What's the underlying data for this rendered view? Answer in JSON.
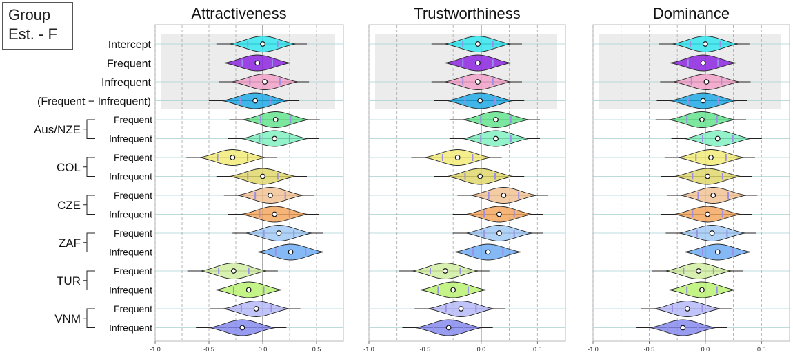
{
  "group_box": {
    "line1": "Group",
    "line2": "Est. - F"
  },
  "chart_data": {
    "type": "violin",
    "xlim": [
      -1.0,
      0.75
    ],
    "xticks": [
      "-1.0",
      "-0.5",
      "0.0",
      "0.5"
    ],
    "panels": [
      {
        "title": "Attractiveness",
        "means": [
          0.0,
          -0.05,
          0.02,
          -0.07,
          0.12,
          0.11,
          -0.28,
          0.0,
          0.07,
          0.11,
          0.15,
          0.26,
          -0.27,
          -0.13,
          -0.06,
          -0.19
        ]
      },
      {
        "title": "Trustworthiness",
        "means": [
          -0.03,
          -0.03,
          -0.03,
          -0.01,
          0.13,
          0.13,
          -0.21,
          -0.01,
          0.2,
          0.16,
          0.16,
          0.06,
          -0.32,
          -0.25,
          -0.18,
          -0.29
        ]
      },
      {
        "title": "Dominance",
        "means": [
          0.0,
          -0.02,
          0.01,
          -0.02,
          -0.03,
          0.11,
          0.05,
          0.02,
          0.07,
          0.02,
          0.06,
          0.11,
          -0.06,
          -0.03,
          -0.16,
          -0.2
        ]
      }
    ],
    "rows": [
      {
        "label": "Intercept",
        "color": "#2ee6f0"
      },
      {
        "label": "Frequent",
        "color": "#8a1fe0"
      },
      {
        "label": "Infrequent",
        "color": "#f3a0c8"
      },
      {
        "label": "(Frequent − Infrequent)",
        "color": "#1aa8e6"
      },
      {
        "group": "Aus/NZE",
        "label": "Frequent",
        "color": "#5fe28a"
      },
      {
        "label": "Infrequent",
        "color": "#7ef0c0"
      },
      {
        "group": "COL",
        "label": "Frequent",
        "color": "#f2ea74"
      },
      {
        "label": "Infrequent",
        "color": "#ded566"
      },
      {
        "group": "CZE",
        "label": "Frequent",
        "color": "#f0c090"
      },
      {
        "label": "Infrequent",
        "color": "#f3a35a"
      },
      {
        "group": "ZAF",
        "label": "Frequent",
        "color": "#9ec8f4"
      },
      {
        "label": "Infrequent",
        "color": "#6aaaf3"
      },
      {
        "group": "TUR",
        "label": "Frequent",
        "color": "#cfeea0"
      },
      {
        "label": "Infrequent",
        "color": "#b7f06e"
      },
      {
        "group": "VNM",
        "label": "Frequent",
        "color": "#b3b7f6"
      },
      {
        "label": "Infrequent",
        "color": "#8287ee"
      }
    ]
  }
}
